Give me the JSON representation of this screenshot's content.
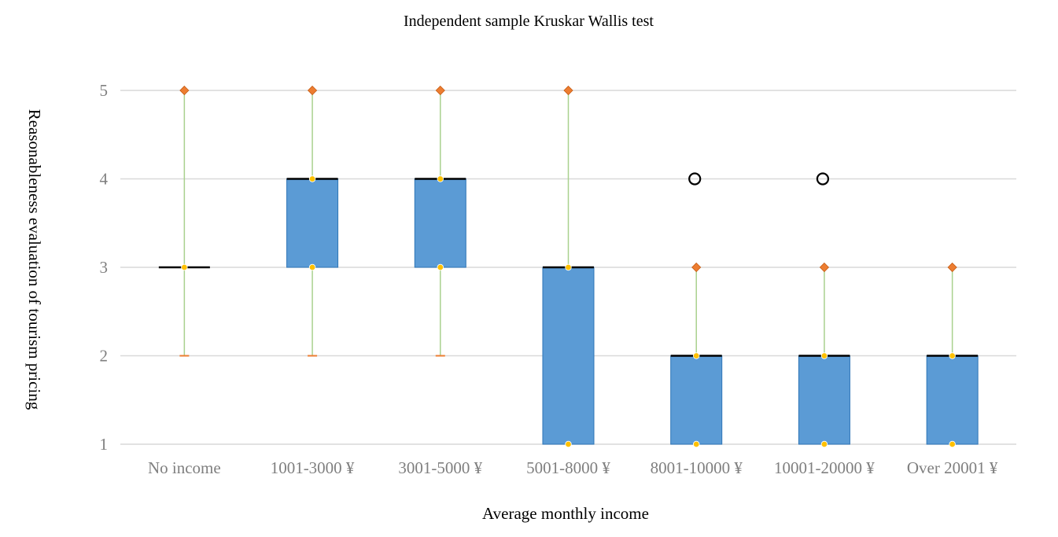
{
  "chart_data": {
    "type": "box",
    "title": "Independent sample Kruskar Wallis test",
    "xlabel": "Average monthly income",
    "ylabel": "Reasonableness evaluation of tourism pricing",
    "ylim": [
      1,
      5
    ],
    "yticks": [
      1,
      2,
      3,
      4,
      5
    ],
    "grid": true,
    "categories": [
      "No income",
      "1001-3000 ¥",
      "3001-5000 ¥",
      "5001-8000 ¥",
      "8001-10000 ¥",
      "10001-20000 ¥",
      "Over 20001 ¥"
    ],
    "boxes": [
      {
        "min": 2,
        "q1": 3,
        "median": 3,
        "q3": 3,
        "max": 5,
        "outliers": []
      },
      {
        "min": 2,
        "q1": 3,
        "median": 4,
        "q3": 4,
        "max": 5,
        "outliers": []
      },
      {
        "min": 2,
        "q1": 3,
        "median": 4,
        "q3": 4,
        "max": 5,
        "outliers": []
      },
      {
        "min": 1,
        "q1": 1,
        "median": 3,
        "q3": 3,
        "max": 5,
        "outliers": []
      },
      {
        "min": 1,
        "q1": 1,
        "median": 2,
        "q3": 2,
        "max": 3,
        "outliers": [
          4
        ]
      },
      {
        "min": 1,
        "q1": 1,
        "median": 2,
        "q3": 2,
        "max": 3,
        "outliers": [
          4
        ]
      },
      {
        "min": 1,
        "q1": 1,
        "median": 2,
        "q3": 2,
        "max": 3,
        "outliers": []
      }
    ]
  },
  "colors": {
    "box_fill": "#5b9bd5",
    "box_stroke": "#2e75b6",
    "median": "#000000",
    "whisker": "#a9d18e",
    "max_marker": "#ed7d31",
    "quartile_marker": "#ffc000",
    "gridline": "#d9d9d9",
    "outlier": "#000000"
  }
}
